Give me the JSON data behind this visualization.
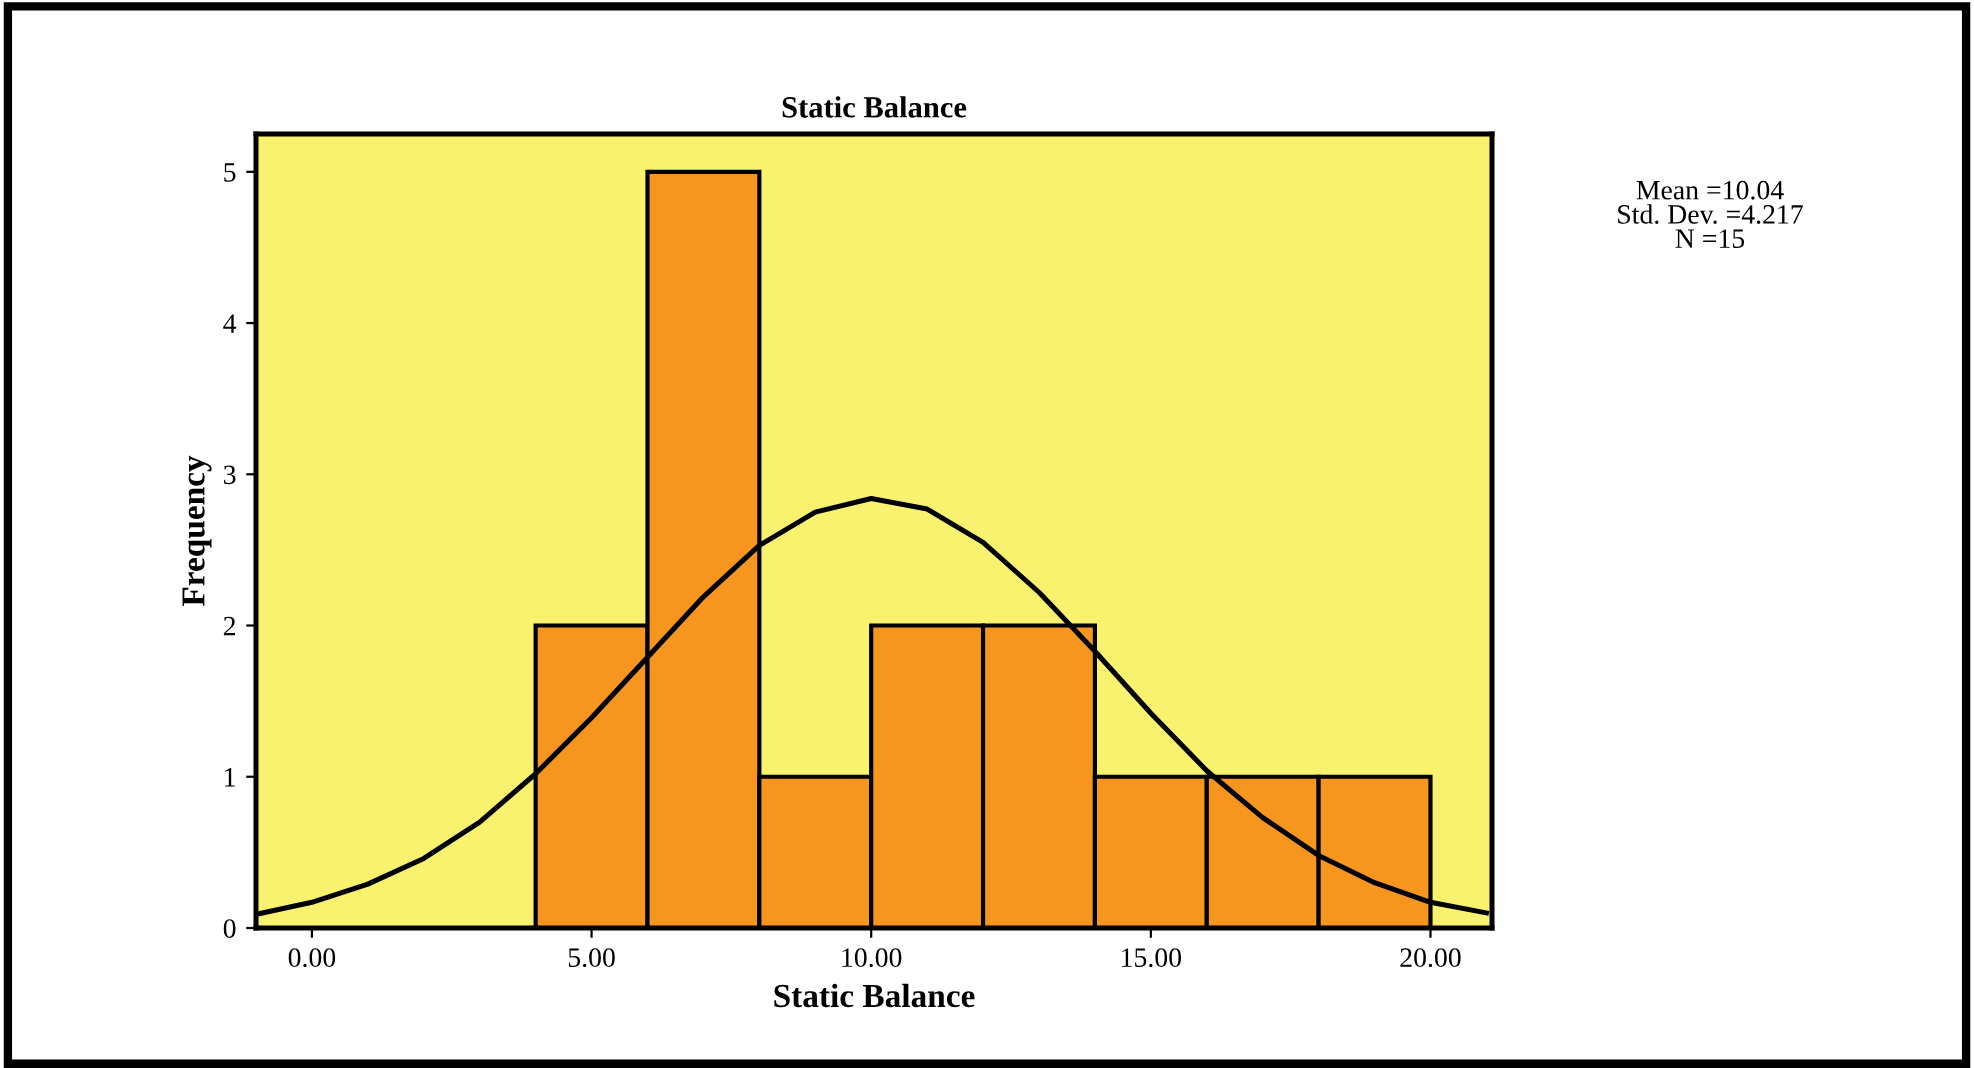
{
  "chart_data": {
    "type": "histogram",
    "title": "Static Balance",
    "xlabel": "Static Balance",
    "ylabel": "Frequency",
    "bins": [
      4,
      6,
      8,
      10,
      12,
      14,
      16,
      18,
      20
    ],
    "values": [
      2,
      5,
      1,
      2,
      2,
      1,
      1,
      1
    ],
    "color": "#f7961e",
    "series": [
      {
        "type": "line",
        "color": "#000000",
        "x": [
          -1,
          0,
          1,
          2,
          3,
          4,
          5,
          6,
          7,
          8,
          9,
          10,
          11,
          12,
          13,
          14,
          15,
          16,
          17,
          18,
          19,
          20,
          21
        ],
        "values": [
          0.09,
          0.17,
          0.29,
          0.46,
          0.7,
          1.02,
          1.39,
          1.79,
          2.19,
          2.53,
          2.75,
          2.84,
          2.77,
          2.55,
          2.22,
          1.83,
          1.42,
          1.04,
          0.73,
          0.48,
          0.3,
          0.17,
          0.1
        ]
      }
    ],
    "xlim": [
      -1,
      21.1
    ],
    "xticks": [
      {
        "value": 0,
        "label": "0.00"
      },
      {
        "value": 5,
        "label": "5.00"
      },
      {
        "value": 10,
        "label": "10.00"
      },
      {
        "value": 15,
        "label": "15.00"
      },
      {
        "value": 20,
        "label": "20.00"
      }
    ],
    "ylim": [
      0,
      5.25
    ],
    "yticks": [
      0,
      1,
      2,
      3,
      4,
      5
    ],
    "grid": false,
    "legend": false,
    "annotations": [
      "Mean =10.04\nStd. Dev. =4.217\nN =15"
    ]
  }
}
